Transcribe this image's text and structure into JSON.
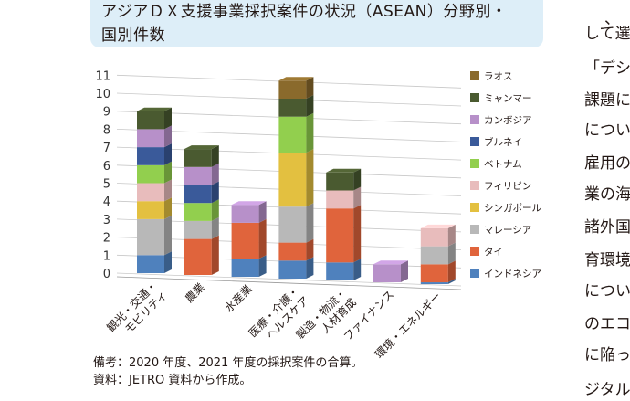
{
  "header": {
    "title_line1": "アジアＤＸ支援事業採択案件の状況（ASEAN）分野別・",
    "title_line2": "国別件数"
  },
  "notes": {
    "line1": "備考：2020 年度、2021 年度の採択案件の合算。",
    "line2": "資料：JETRO 資料から作成。"
  },
  "side_text": {
    "lines": [
      "、",
      "して選",
      "「デシ",
      "課題に",
      "につい",
      "雇用の",
      "業の海",
      "諸外国",
      "育環境",
      "につい",
      "のエコ",
      "に陥っ",
      "ジタル"
    ]
  },
  "chart_data": {
    "type": "bar",
    "stacked": true,
    "three_d": true,
    "categories": [
      "観光・交通・モビリティ",
      "農業",
      "水産業",
      "医療・介護・ヘルスケア",
      "製造・物流・人材育成",
      "ファイナンス",
      "環境・エネルギー"
    ],
    "category_lines": [
      [
        "観光・交通・",
        "モビリティ"
      ],
      [
        "農業"
      ],
      [
        "水産業"
      ],
      [
        "医療・介護・",
        "ヘルスケア"
      ],
      [
        "製造・物流・",
        "人材育成"
      ],
      [
        "ファイナンス"
      ],
      [
        "環境・エネルギー"
      ]
    ],
    "yticks": [
      "0",
      "1",
      "2",
      "3",
      "4",
      "5",
      "6",
      "7",
      "8",
      "9",
      "10",
      "11"
    ],
    "ylim": [
      0,
      11
    ],
    "grid": true,
    "legend_position": "right",
    "series": [
      {
        "name": "インドネシア",
        "color": "#4f81bd",
        "values": [
          1,
          0,
          1,
          1,
          1,
          0,
          0.1
        ]
      },
      {
        "name": "タイ",
        "color": "#e0643c",
        "values": [
          0,
          2,
          2,
          1,
          3,
          0,
          1
        ]
      },
      {
        "name": "マレーシア",
        "color": "#b8b8b8",
        "values": [
          2,
          1,
          0,
          2,
          0,
          0,
          1
        ]
      },
      {
        "name": "シンガポール",
        "color": "#e3c040",
        "values": [
          1,
          0,
          0,
          3,
          0,
          0,
          0
        ]
      },
      {
        "name": "フィリピン",
        "color": "#e8bcbc",
        "values": [
          1,
          0,
          0,
          0,
          1,
          0,
          1
        ]
      },
      {
        "name": "ベトナム",
        "color": "#92cf4e",
        "values": [
          1,
          1,
          0,
          2,
          0,
          0,
          0
        ]
      },
      {
        "name": "ブルネイ",
        "color": "#3a5a9a",
        "values": [
          1,
          1,
          0,
          0,
          0,
          0,
          0
        ]
      },
      {
        "name": "カンボジア",
        "color": "#b790c9",
        "values": [
          1,
          1,
          1,
          0,
          0,
          1,
          0
        ]
      },
      {
        "name": "ミャンマー",
        "color": "#4a5a30",
        "values": [
          1,
          1,
          0,
          1,
          1,
          0,
          0
        ]
      },
      {
        "name": "ラオス",
        "color": "#8a6a2c",
        "values": [
          0,
          0,
          0,
          1,
          0,
          0,
          0
        ]
      }
    ]
  }
}
